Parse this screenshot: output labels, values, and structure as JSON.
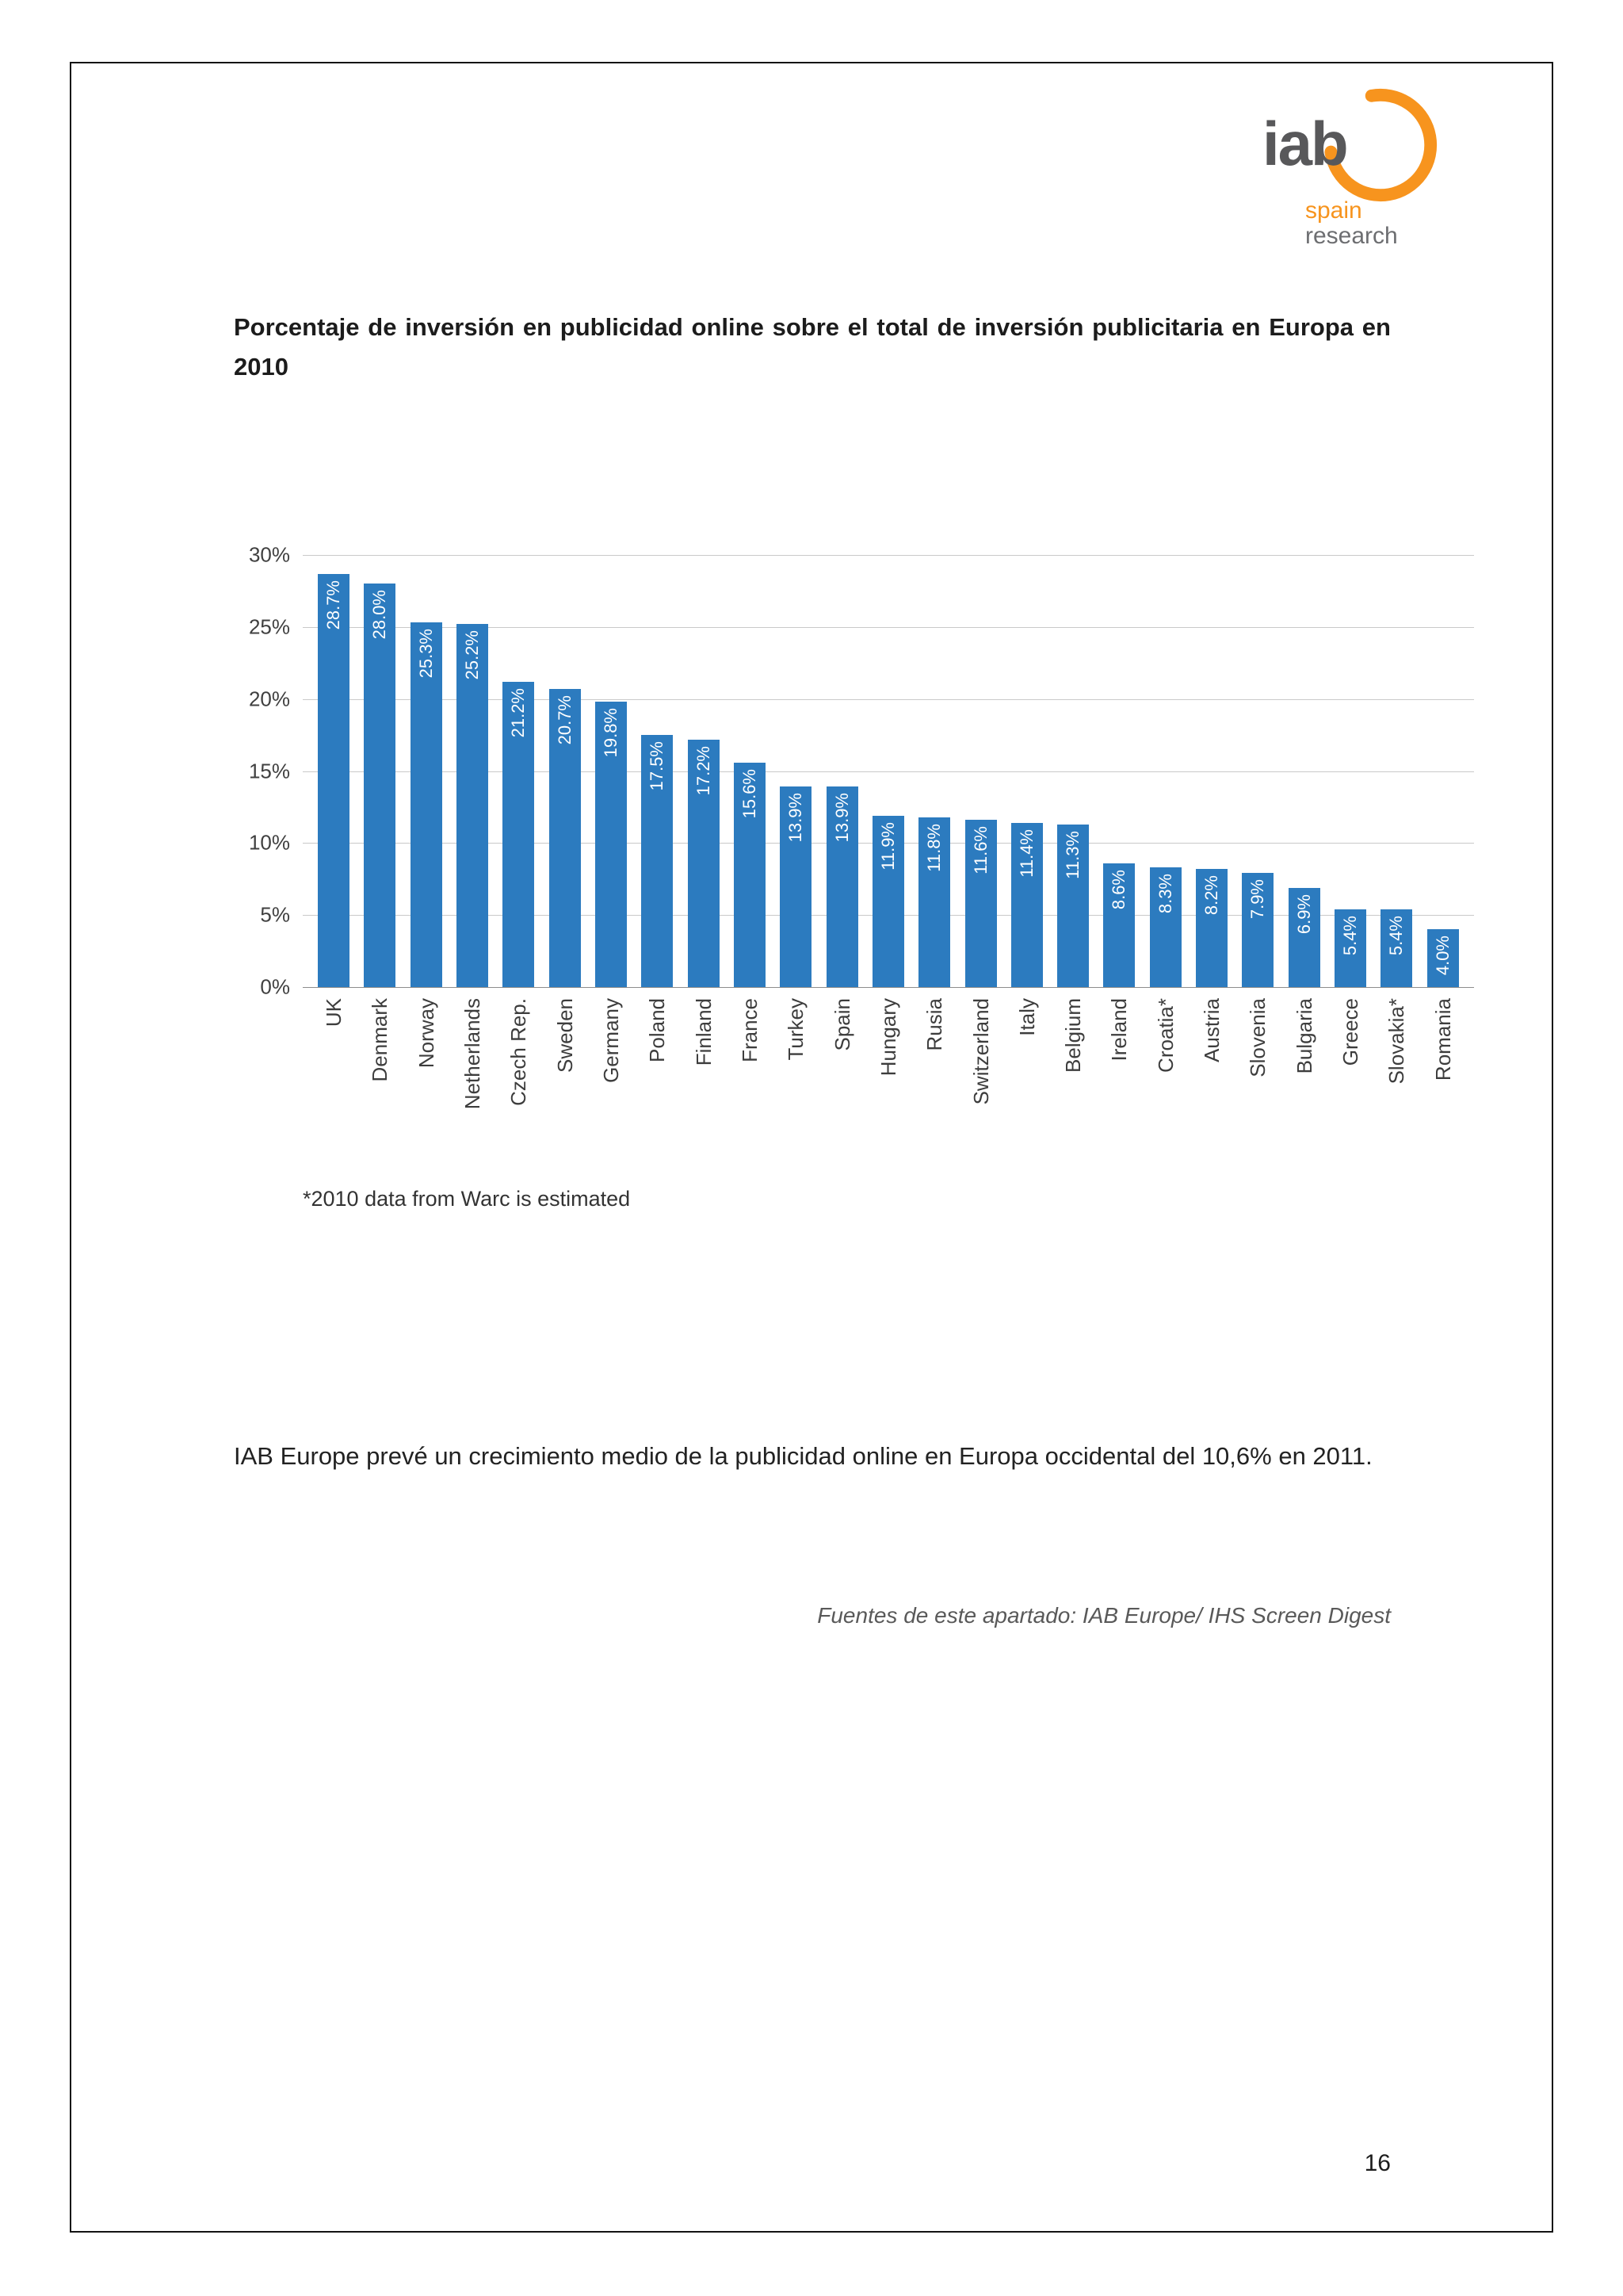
{
  "page": {
    "title": "Porcentaje de inversión en publicidad online sobre el total de inversión publicitaria en Europa en 2010",
    "footnote": "*2010 data from Warc is estimated",
    "body_paragraph": "IAB Europe prevé un crecimiento medio de la publicidad online en Europa occidental del 10,6% en 2011.",
    "source_note": "Fuentes de este apartado: IAB Europe/ IHS Screen Digest",
    "page_number": "16"
  },
  "logo": {
    "text": "iab",
    "subtitle_line1": "spain",
    "subtitle_line2": "research",
    "accent_color": "#F7941E",
    "text_color": "#58585A"
  },
  "chart_data": {
    "type": "bar",
    "title": "Porcentaje de inversión en publicidad online sobre el total de inversión publicitaria en Europa en 2010",
    "categories": [
      "UK",
      "Denmark",
      "Norway",
      "Netherlands",
      "Czech Rep.",
      "Sweden",
      "Germany",
      "Poland",
      "Finland",
      "France",
      "Turkey",
      "Spain",
      "Hungary",
      "Rusia",
      "Switzerland",
      "Italy",
      "Belgium",
      "Ireland",
      "Croatia*",
      "Austria",
      "Slovenia",
      "Bulgaria",
      "Greece",
      "Slovakia*",
      "Romania"
    ],
    "values": [
      28.7,
      28.0,
      25.3,
      25.2,
      21.2,
      20.7,
      19.8,
      17.5,
      17.2,
      15.6,
      13.9,
      13.9,
      11.9,
      11.8,
      11.6,
      11.4,
      11.3,
      8.6,
      8.3,
      8.2,
      7.9,
      6.9,
      5.4,
      5.4,
      4.0
    ],
    "value_labels": [
      "28.7%",
      "28.0%",
      "25.3%",
      "25.2%",
      "21.2%",
      "20.7%",
      "19.8%",
      "17.5%",
      "17.2%",
      "15.6%",
      "13.9%",
      "13.9%",
      "11.9%",
      "11.8%",
      "11.6%",
      "11.4%",
      "11.3%",
      "8.6%",
      "8.3%",
      "8.2%",
      "7.9%",
      "6.9%",
      "5.4%",
      "5.4%",
      "4.0%"
    ],
    "xlabel": "",
    "ylabel": "",
    "ylim": [
      0,
      30
    ],
    "yticks": [
      "30%",
      "25%",
      "20%",
      "15%",
      "10%",
      "5%",
      "0%"
    ],
    "grid": true,
    "legend": false,
    "bar_color": "#2C7BBF"
  }
}
